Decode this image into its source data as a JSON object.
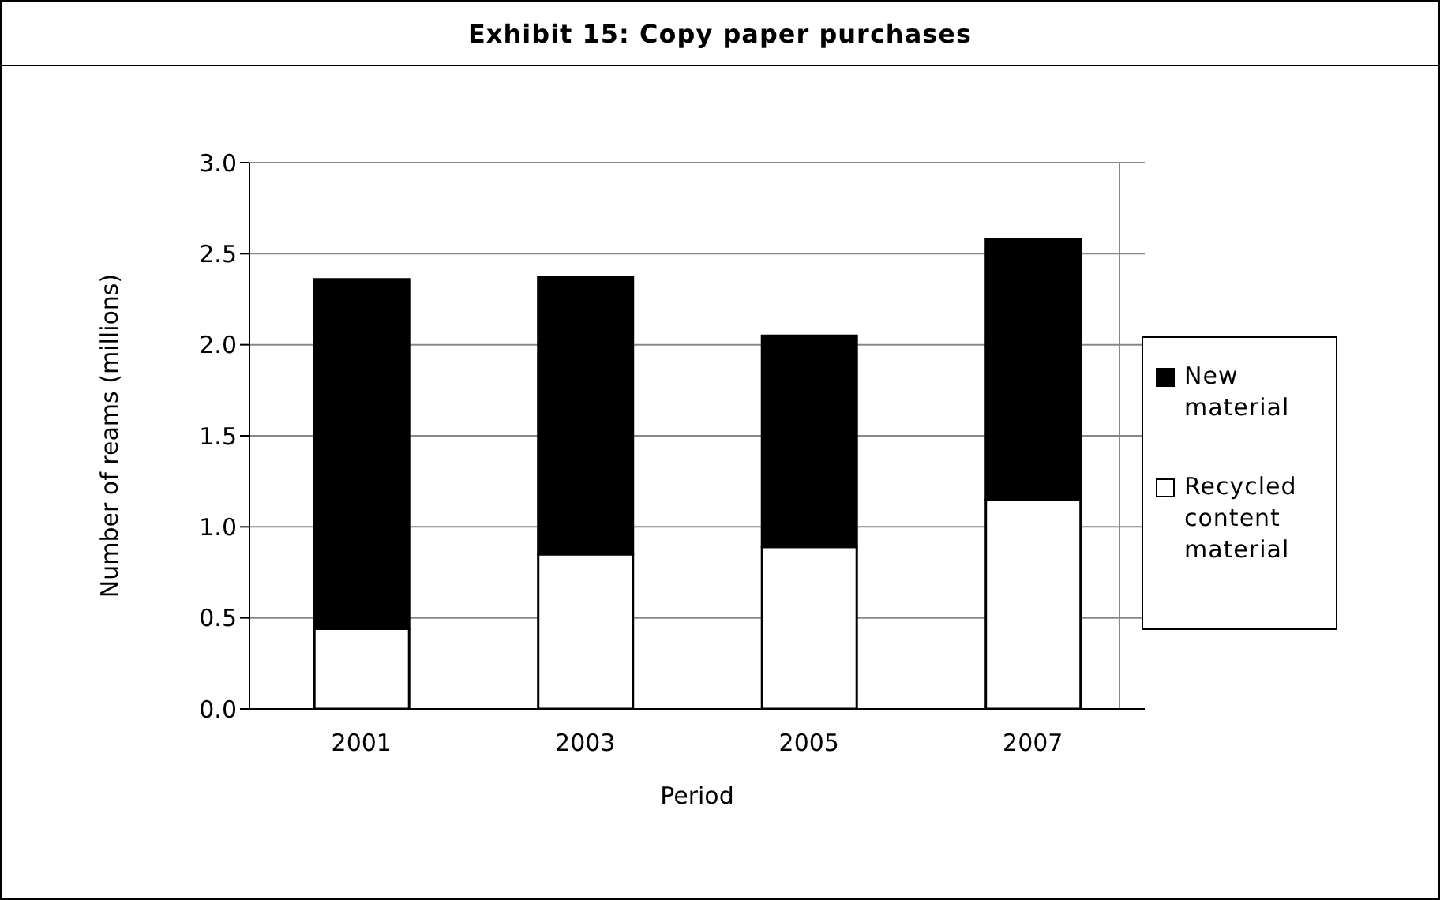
{
  "chart_data": {
    "type": "bar",
    "title": "Exhibit 15: Copy paper purchases",
    "xlabel": "Period",
    "ylabel": "Number of reams (millions)",
    "categories": [
      "2001",
      "2003",
      "2005",
      "2007"
    ],
    "stacked": true,
    "series": [
      {
        "name": "Recycled content material",
        "color": "#ffffff",
        "values": [
          0.44,
          0.85,
          0.89,
          1.15
        ]
      },
      {
        "name": "New material",
        "color": "#000000",
        "values": [
          1.92,
          1.52,
          1.16,
          1.43
        ]
      }
    ],
    "ylim": [
      0,
      3.0
    ],
    "yticks": [
      {
        "value": 0,
        "label": "0.0"
      },
      {
        "value": 0.5,
        "label": "0.5"
      },
      {
        "value": 1,
        "label": "1.0"
      },
      {
        "value": 1.5,
        "label": "1.5"
      },
      {
        "value": 2,
        "label": "2.0"
      },
      {
        "value": 2.5,
        "label": "2.5"
      },
      {
        "value": 3,
        "label": "3.0"
      }
    ],
    "grid": "y",
    "legend": "right"
  }
}
